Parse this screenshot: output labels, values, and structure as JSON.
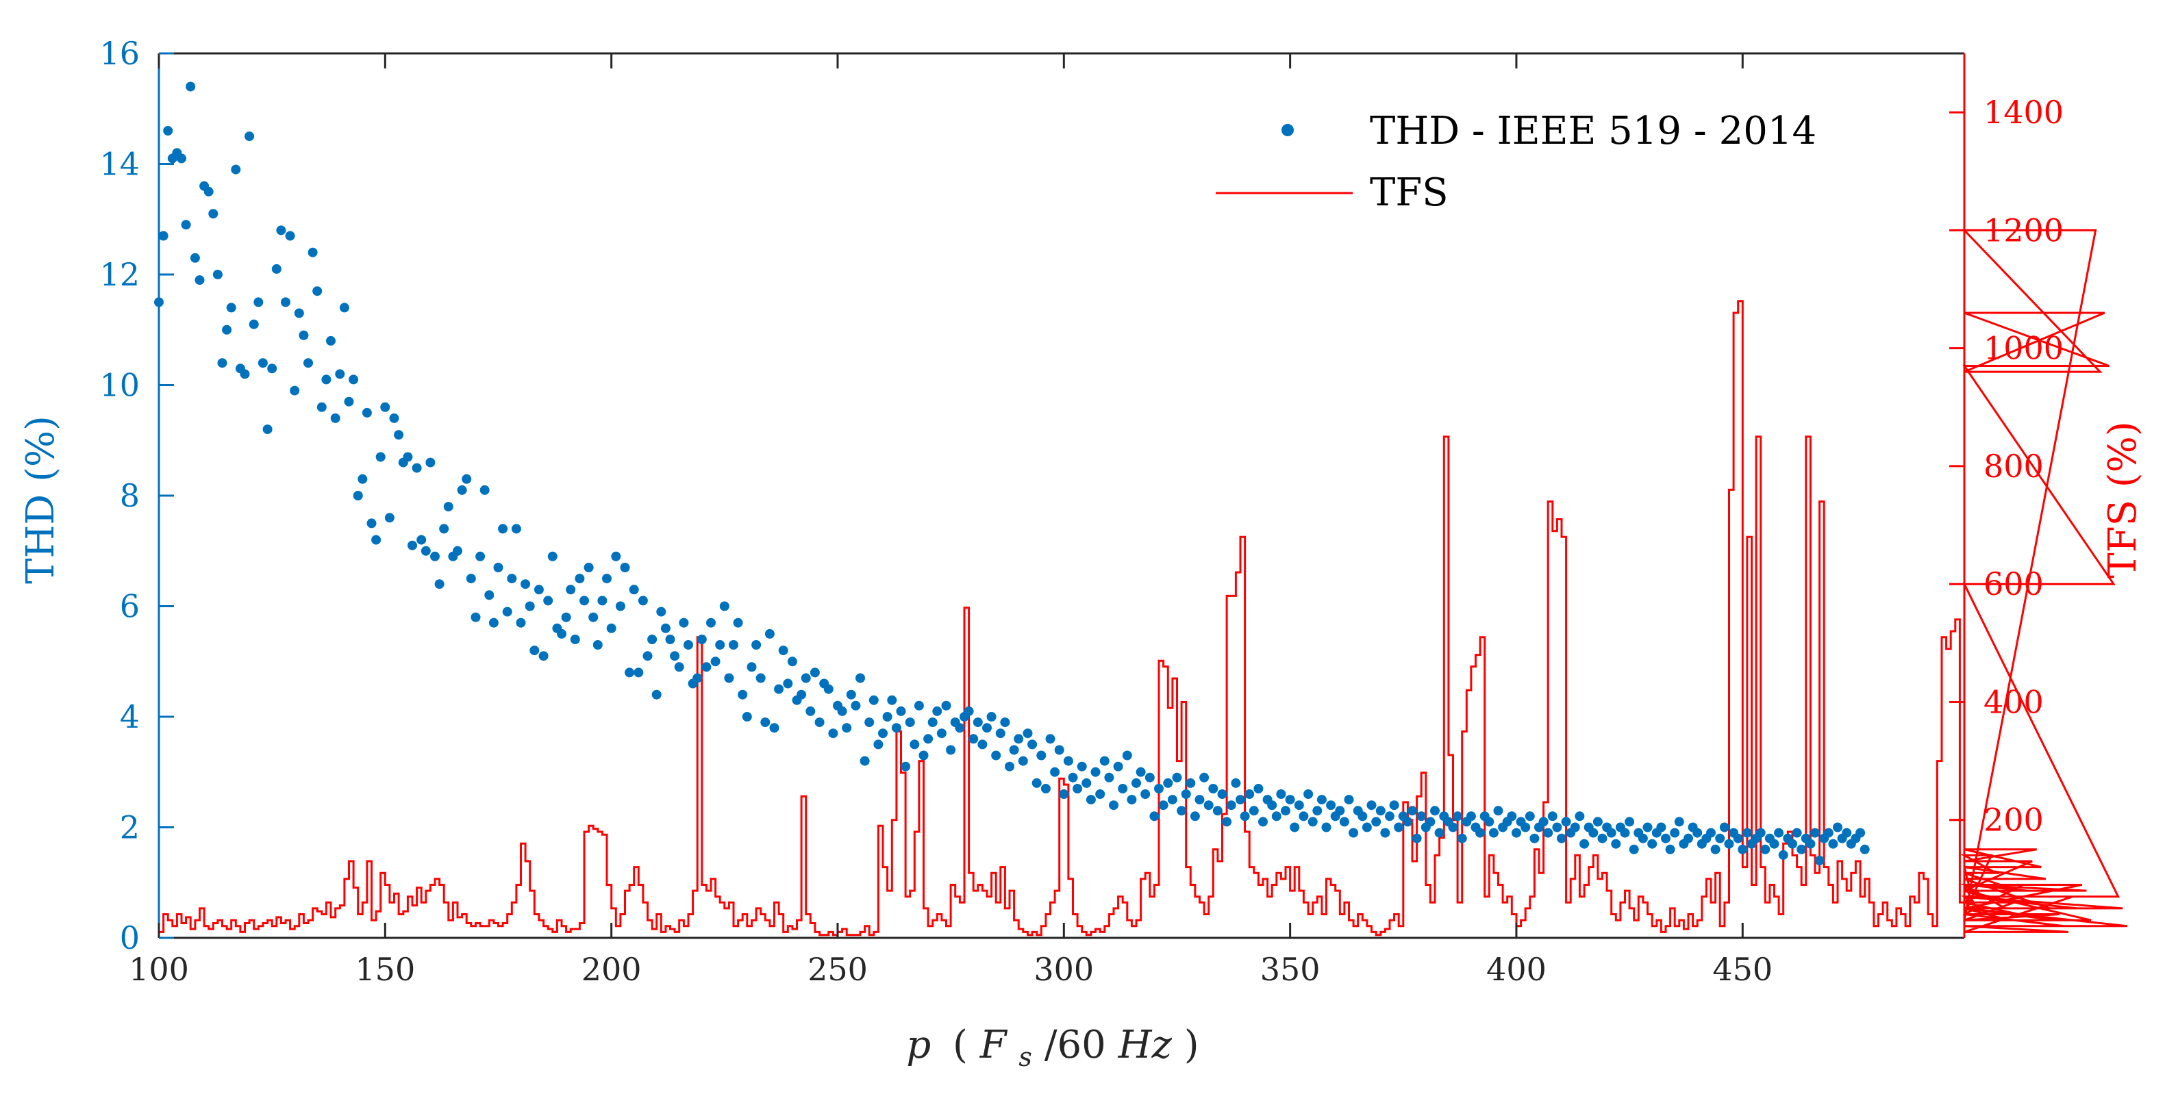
{
  "chart_data": {
    "type": "scatter+step",
    "title": "",
    "xlabel": "p (F_s/60Hz)",
    "xlabel_parts": {
      "p": "p",
      "open": "(",
      "F": "F",
      "sub": "s",
      "rest": "/60",
      "Hz": "Hz",
      "close": ")"
    },
    "ylabel_left": "THD (%)",
    "ylabel_right": "TFS (%)",
    "xlim": [
      100,
      499
    ],
    "ylim_left": [
      0,
      16
    ],
    "ylim_right": [
      0,
      1500
    ],
    "xticks": [
      100,
      150,
      200,
      250,
      300,
      350,
      400,
      450
    ],
    "yticks_left": [
      0,
      2,
      4,
      6,
      8,
      10,
      12,
      14,
      16
    ],
    "yticks_right": [
      200,
      400,
      600,
      800,
      1000,
      1200,
      1400
    ],
    "colors": {
      "thd": "#0072BD",
      "tfs": "#FF0000",
      "axes": "#262626"
    },
    "legend": {
      "location": "top-right",
      "entries": [
        "THD - IEEE 519 - 2014",
        "TFS"
      ]
    },
    "series": [
      {
        "name": "THD - IEEE 519 - 2014",
        "axis": "left",
        "style": "markers",
        "x_start": 100,
        "x_step": 1,
        "values": [
          11.5,
          12.7,
          14.6,
          14.1,
          14.2,
          14.1,
          12.9,
          15.4,
          12.3,
          11.9,
          13.6,
          13.5,
          13.1,
          12.0,
          10.4,
          11.0,
          11.4,
          13.9,
          10.3,
          10.2,
          14.5,
          11.1,
          11.5,
          10.4,
          9.2,
          10.3,
          12.1,
          12.8,
          11.5,
          12.7,
          9.9,
          11.3,
          10.9,
          10.4,
          12.4,
          11.7,
          9.6,
          10.1,
          10.8,
          9.4,
          10.2,
          11.4,
          9.7,
          10.1,
          8.0,
          8.3,
          9.5,
          7.5,
          7.2,
          8.7,
          9.6,
          7.6,
          9.4,
          9.1,
          8.6,
          8.7,
          7.1,
          8.5,
          7.2,
          7.0,
          8.6,
          6.9,
          6.4,
          7.4,
          7.8,
          6.9,
          7.0,
          8.1,
          8.3,
          6.5,
          5.8,
          6.9,
          8.1,
          6.2,
          5.7,
          6.7,
          7.4,
          5.9,
          6.5,
          7.4,
          5.7,
          6.4,
          6.0,
          5.2,
          6.3,
          5.1,
          6.1,
          6.9,
          5.6,
          5.5,
          5.8,
          6.3,
          5.4,
          6.5,
          6.1,
          6.7,
          5.8,
          5.3,
          6.1,
          6.5,
          5.6,
          6.9,
          6.0,
          6.7,
          4.8,
          6.3,
          4.8,
          6.1,
          5.1,
          5.4,
          4.4,
          5.9,
          5.6,
          5.4,
          5.1,
          4.9,
          5.7,
          5.3,
          4.6,
          4.7,
          5.4,
          4.9,
          5.7,
          5.0,
          5.3,
          6.0,
          4.7,
          5.3,
          5.7,
          4.4,
          4.0,
          4.9,
          5.3,
          4.7,
          3.9,
          5.5,
          3.8,
          4.5,
          5.2,
          4.6,
          5.0,
          4.3,
          4.4,
          4.7,
          4.1,
          4.8,
          3.9,
          4.6,
          4.5,
          3.7,
          4.2,
          4.1,
          3.8,
          4.4,
          4.2,
          4.7,
          3.2,
          3.9,
          4.3,
          3.5,
          3.7,
          4.0,
          4.3,
          3.8,
          4.1,
          3.1,
          3.9,
          3.5,
          4.2,
          3.3,
          3.6,
          3.9,
          4.1,
          3.7,
          4.2,
          3.4,
          3.9,
          3.8,
          4.0,
          4.1,
          3.6,
          3.9,
          3.5,
          3.8,
          4.0,
          3.3,
          3.7,
          3.9,
          3.1,
          3.4,
          3.6,
          3.2,
          3.7,
          3.5,
          2.8,
          3.3,
          2.7,
          3.6,
          3.0,
          3.4,
          2.6,
          3.2,
          2.9,
          2.7,
          3.1,
          2.8,
          2.5,
          3.0,
          2.6,
          3.2,
          2.9,
          2.4,
          3.1,
          2.7,
          3.3,
          2.5,
          2.8,
          3.0,
          2.6,
          2.9,
          2.2,
          2.7,
          2.4,
          2.8,
          2.5,
          2.9,
          2.3,
          2.6,
          2.8,
          2.2,
          2.5,
          2.9,
          2.4,
          2.7,
          2.3,
          2.6,
          2.1,
          2.4,
          2.8,
          2.5,
          2.2,
          2.6,
          2.3,
          2.7,
          2.1,
          2.5,
          2.4,
          2.2,
          2.6,
          2.3,
          2.5,
          2.0,
          2.4,
          2.2,
          2.6,
          2.1,
          2.3,
          2.5,
          2.0,
          2.4,
          2.2,
          2.3,
          2.1,
          2.5,
          1.9,
          2.3,
          2.2,
          2.0,
          2.4,
          2.1,
          2.3,
          1.9,
          2.2,
          2.4,
          2.0,
          2.2,
          2.1,
          2.3,
          1.8,
          2.2,
          2.0,
          2.1,
          2.3,
          1.9,
          2.2,
          2.1,
          2.0,
          2.2,
          1.8,
          2.1,
          2.2,
          2.0,
          1.9,
          2.2,
          2.1,
          1.9,
          2.3,
          2.0,
          2.1,
          2.2,
          1.9,
          2.1,
          2.0,
          2.2,
          1.8,
          2.0,
          2.1,
          1.9,
          2.2,
          2.0,
          1.8,
          2.1,
          1.9,
          2.0,
          2.2,
          1.7,
          2.0,
          1.9,
          2.1,
          1.8,
          2.0,
          1.9,
          1.7,
          2.0,
          1.9,
          2.1,
          1.6,
          1.9,
          1.8,
          2.0,
          1.7,
          1.9,
          2.0,
          1.8,
          1.6,
          1.9,
          2.1,
          1.7,
          1.8,
          2.0,
          1.9,
          1.7,
          1.8,
          1.9,
          1.6,
          1.8,
          2.0,
          1.7,
          1.9,
          1.8,
          1.6,
          1.9,
          1.7,
          1.8,
          1.9,
          1.6,
          1.8,
          1.7,
          1.9,
          1.5,
          1.8,
          1.7,
          1.9,
          1.6,
          1.8,
          1.7,
          1.9,
          1.4,
          1.8,
          1.9,
          1.7,
          2.0,
          1.8,
          1.9,
          1.7,
          1.8,
          1.9,
          1.6
        ]
      },
      {
        "name": "TFS",
        "axis": "right",
        "style": "stairs",
        "x_start": 100,
        "x_step": 1,
        "values": [
          10,
          40,
          30,
          20,
          40,
          25,
          35,
          15,
          30,
          50,
          20,
          15,
          25,
          30,
          20,
          15,
          30,
          20,
          10,
          25,
          30,
          15,
          20,
          25,
          30,
          20,
          35,
          25,
          30,
          15,
          20,
          40,
          25,
          30,
          50,
          45,
          40,
          60,
          35,
          50,
          55,
          100,
          130,
          85,
          40,
          60,
          130,
          30,
          45,
          110,
          90,
          60,
          75,
          40,
          45,
          70,
          55,
          85,
          60,
          80,
          90,
          100,
          90,
          60,
          30,
          60,
          35,
          40,
          25,
          20,
          25,
          20,
          20,
          30,
          25,
          20,
          25,
          40,
          60,
          90,
          160,
          130,
          80,
          40,
          30,
          20,
          15,
          10,
          30,
          20,
          10,
          15,
          15,
          25,
          180,
          190,
          185,
          180,
          175,
          90,
          50,
          20,
          40,
          80,
          90,
          120,
          90,
          60,
          30,
          15,
          40,
          10,
          20,
          15,
          10,
          30,
          20,
          40,
          80,
          510,
          90,
          80,
          100,
          70,
          60,
          50,
          60,
          20,
          30,
          40,
          20,
          30,
          50,
          40,
          30,
          20,
          60,
          40,
          10,
          20,
          15,
          30,
          240,
          40,
          25,
          10,
          5,
          5,
          10,
          5,
          10,
          15,
          5,
          5,
          5,
          10,
          20,
          5,
          10,
          190,
          120,
          80,
          200,
          350,
          280,
          70,
          80,
          180,
          300,
          50,
          20,
          30,
          40,
          30,
          20,
          90,
          70,
          60,
          560,
          110,
          80,
          90,
          80,
          70,
          110,
          60,
          120,
          50,
          80,
          30,
          15,
          10,
          5,
          10,
          5,
          20,
          40,
          60,
          80,
          270,
          260,
          100,
          40,
          20,
          10,
          5,
          10,
          15,
          10,
          20,
          40,
          50,
          70,
          60,
          30,
          20,
          30,
          100,
          110,
          70,
          90,
          470,
          460,
          390,
          440,
          300,
          400,
          120,
          90,
          70,
          60,
          40,
          70,
          150,
          130,
          210,
          580,
          580,
          620,
          680,
          180,
          120,
          110,
          90,
          100,
          70,
          90,
          110,
          100,
          120,
          80,
          120,
          80,
          60,
          40,
          60,
          70,
          40,
          100,
          90,
          80,
          40,
          60,
          30,
          20,
          40,
          30,
          20,
          10,
          5,
          10,
          15,
          30,
          40,
          20,
          230,
          200,
          130,
          240,
          280,
          90,
          60,
          140,
          170,
          850,
          310,
          200,
          60,
          350,
          420,
          460,
          480,
          510,
          70,
          140,
          110,
          90,
          60,
          70,
          40,
          20,
          30,
          50,
          70,
          150,
          110,
          230,
          740,
          690,
          710,
          680,
          60,
          100,
          140,
          70,
          90,
          120,
          140,
          100,
          110,
          80,
          40,
          30,
          60,
          80,
          50,
          30,
          70,
          60,
          40,
          20,
          30,
          10,
          20,
          50,
          20,
          30,
          15,
          40,
          20,
          30,
          70,
          100,
          60,
          110,
          20,
          60,
          760,
          1060,
          1080,
          120,
          680,
          90,
          850,
          120,
          60,
          90,
          70,
          40,
          160,
          180,
          140,
          120,
          90,
          850,
          140,
          110,
          740,
          120,
          90,
          60,
          130,
          100,
          80,
          110,
          130,
          70,
          100,
          60,
          20,
          40,
          60,
          30,
          20,
          50,
          40,
          20,
          70,
          60,
          110,
          100,
          40,
          20,
          300,
          510,
          490,
          520,
          540,
          60,
          120,
          90,
          60,
          80,
          70,
          40,
          140,
          110,
          90,
          50,
          30,
          60,
          40,
          90,
          80,
          130,
          150,
          120,
          100,
          50,
          30,
          40,
          20,
          10,
          70,
          50,
          90,
          80,
          30,
          1200,
          960,
          1060,
          970,
          600,
          70,
          50,
          20
        ]
      }
    ]
  }
}
